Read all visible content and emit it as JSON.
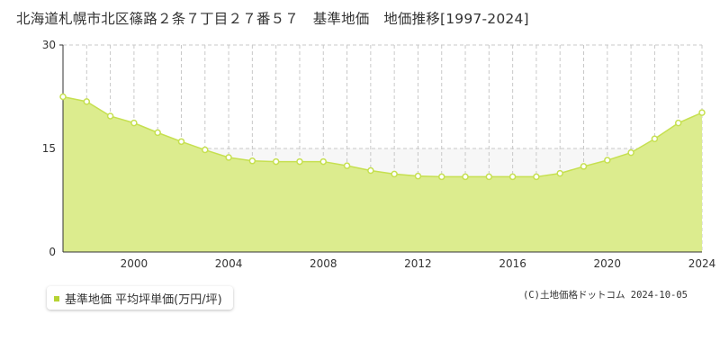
{
  "title": "北海道札幌市北区篠路２条７丁目２７番５７　基準地価　地価推移[1997-2024]",
  "copyright": "(C)土地価格ドットコム 2024-10-05",
  "colors": {
    "area_fill": "#dcec8e",
    "line": "#c6e050",
    "marker_fill": "#ffffff",
    "marker_stroke": "#c6e050",
    "legend_swatch": "#b6d333",
    "grid": "#c8c8c8",
    "axis": "#333333",
    "above_area": "#f7f7f7"
  },
  "chart_data": {
    "type": "area",
    "title": "北海道札幌市北区篠路２条７丁目２７番５７　基準地価　地価推移[1997-2024]",
    "xlabel": "",
    "ylabel": "",
    "xlim": [
      1997,
      2024
    ],
    "ylim": [
      0,
      30
    ],
    "y_ticks": [
      0,
      15,
      30
    ],
    "x_tick_labels": [
      2000,
      2004,
      2008,
      2012,
      2016,
      2020,
      2024
    ],
    "grid": true,
    "legend_position": "bottom-left",
    "series": [
      {
        "name": "基準地価 平均坪単価(万円/坪)",
        "x": [
          1997,
          1998,
          1999,
          2000,
          2001,
          2002,
          2003,
          2004,
          2005,
          2006,
          2007,
          2008,
          2009,
          2010,
          2011,
          2012,
          2013,
          2014,
          2015,
          2016,
          2017,
          2018,
          2019,
          2020,
          2021,
          2022,
          2023,
          2024
        ],
        "values": [
          22.5,
          21.8,
          19.7,
          18.7,
          17.3,
          16.0,
          14.8,
          13.7,
          13.2,
          13.1,
          13.1,
          13.1,
          12.5,
          11.8,
          11.3,
          11.0,
          10.9,
          10.9,
          10.9,
          10.9,
          10.9,
          11.4,
          12.4,
          13.3,
          14.4,
          16.4,
          18.7,
          20.2
        ]
      }
    ]
  }
}
